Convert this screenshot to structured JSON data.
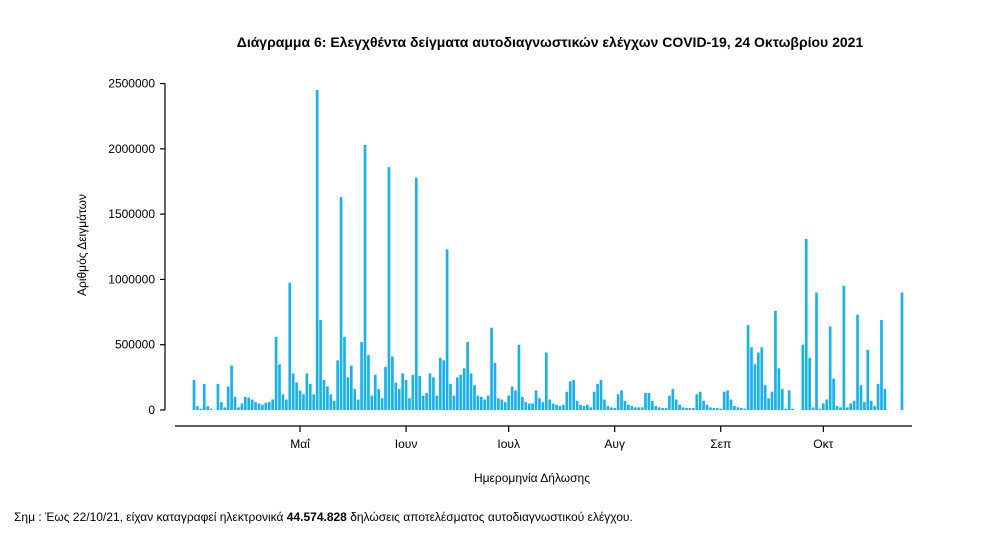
{
  "chart_data": {
    "type": "bar",
    "title": "Διάγραμμα 6: Ελεγχθέντα δείγματα αυτοδιαγνωστικών ελέγχων COVID-19, 24 Οκτωβρίου 2021",
    "xlabel": "Ημερομηνία Δήλωσης",
    "ylabel": "Αριθμός Δειγμάτων",
    "ylim": [
      0,
      2600000
    ],
    "yticks": [
      0,
      500000,
      1000000,
      1500000,
      2000000,
      2500000
    ],
    "ytick_labels": [
      "0",
      "500000",
      "1000000",
      "1500000",
      "2000000",
      "2500000"
    ],
    "xtick_labels": [
      "Μαΐ",
      "Ιουν",
      "Ιουλ",
      "Αυγ",
      "Σεπ",
      "Οκτ"
    ],
    "xtick_day_index": [
      31,
      62,
      92,
      123,
      154,
      184
    ],
    "start_date": "2021-04-01",
    "color": "#1ab0e8",
    "values": [
      230000,
      30000,
      10000,
      200000,
      30000,
      10000,
      0,
      200000,
      60000,
      20000,
      180000,
      340000,
      100000,
      20000,
      50000,
      100000,
      95000,
      80000,
      60000,
      50000,
      40000,
      55000,
      60000,
      80000,
      560000,
      350000,
      120000,
      80000,
      975000,
      280000,
      210000,
      150000,
      120000,
      280000,
      200000,
      120000,
      2450000,
      690000,
      230000,
      180000,
      120000,
      70000,
      380000,
      1630000,
      560000,
      250000,
      340000,
      160000,
      80000,
      520000,
      2030000,
      420000,
      110000,
      270000,
      160000,
      90000,
      330000,
      1860000,
      410000,
      210000,
      160000,
      280000,
      230000,
      90000,
      270000,
      1780000,
      260000,
      110000,
      130000,
      280000,
      250000,
      110000,
      400000,
      380000,
      1230000,
      200000,
      110000,
      250000,
      270000,
      320000,
      520000,
      280000,
      190000,
      110000,
      100000,
      80000,
      110000,
      630000,
      360000,
      90000,
      80000,
      60000,
      110000,
      180000,
      150000,
      500000,
      100000,
      60000,
      50000,
      50000,
      150000,
      90000,
      60000,
      440000,
      80000,
      50000,
      40000,
      30000,
      40000,
      140000,
      220000,
      230000,
      70000,
      40000,
      30000,
      40000,
      20000,
      140000,
      200000,
      230000,
      80000,
      30000,
      20000,
      15000,
      120000,
      150000,
      70000,
      40000,
      30000,
      20000,
      20000,
      20000,
      130000,
      130000,
      70000,
      30000,
      20000,
      15000,
      15000,
      110000,
      160000,
      80000,
      40000,
      20000,
      15000,
      15000,
      15000,
      120000,
      140000,
      70000,
      40000,
      20000,
      15000,
      15000,
      10000,
      140000,
      150000,
      80000,
      30000,
      20000,
      15000,
      10000,
      650000,
      480000,
      350000,
      440000,
      480000,
      190000,
      90000,
      140000,
      760000,
      320000,
      160000,
      10000,
      150000,
      10000,
      0,
      0,
      500000,
      1310000,
      400000,
      20000,
      900000,
      10000,
      50000,
      80000,
      640000,
      240000,
      30000,
      20000,
      950000,
      20000,
      50000,
      70000,
      730000,
      190000,
      60000,
      460000,
      70000,
      30000,
      200000,
      690000,
      160000,
      0,
      0,
      0,
      0,
      900000
    ]
  },
  "footnote": {
    "prefix": "Σημ : Έως 22/10/21, είχαν καταγραφεί ηλεκτρονικά ",
    "highlight": "44.574.828",
    "suffix": " δηλώσεις αποτελέσματος αυτοδιαγνωστικού ελέγχου."
  }
}
